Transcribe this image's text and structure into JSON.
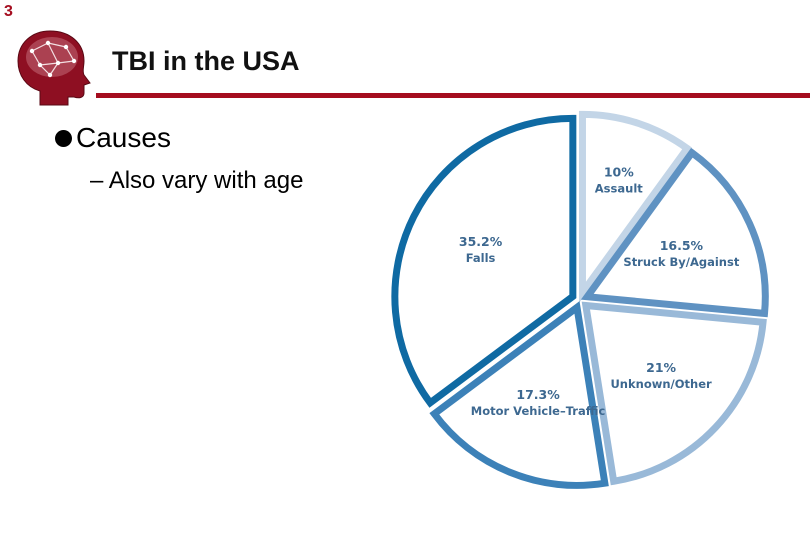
{
  "slide": {
    "number": "3",
    "title": "TBI in the USA",
    "bullet": "Causes",
    "sub_bullet": "– Also vary with age"
  },
  "colors": {
    "accent": "#a50d1f",
    "label_text": "#3d6890"
  },
  "logo": {
    "icon": "head-brain-icon"
  },
  "chart_data": {
    "type": "pie",
    "title": "",
    "start": "top, clockwise",
    "slices": [
      {
        "label": "Assault",
        "value": 10,
        "display": "10%",
        "stroke": "#c3d5e7",
        "fill": "#ffffff"
      },
      {
        "label": "Struck By/Against",
        "value": 16.5,
        "display": "16.5%",
        "stroke": "#5f92c2",
        "fill": "#ffffff"
      },
      {
        "label": "Unknown/Other",
        "value": 21,
        "display": "21%",
        "stroke": "#99b9d8",
        "fill": "#ffffff"
      },
      {
        "label": "Motor Vehicle–Traffic",
        "value": 17.3,
        "display": "17.3%",
        "stroke": "#3c81b8",
        "fill": "#ffffff"
      },
      {
        "label": "Falls",
        "value": 35.2,
        "display": "35.2%",
        "stroke": "#0f6aa3",
        "fill": "#ffffff"
      }
    ]
  }
}
